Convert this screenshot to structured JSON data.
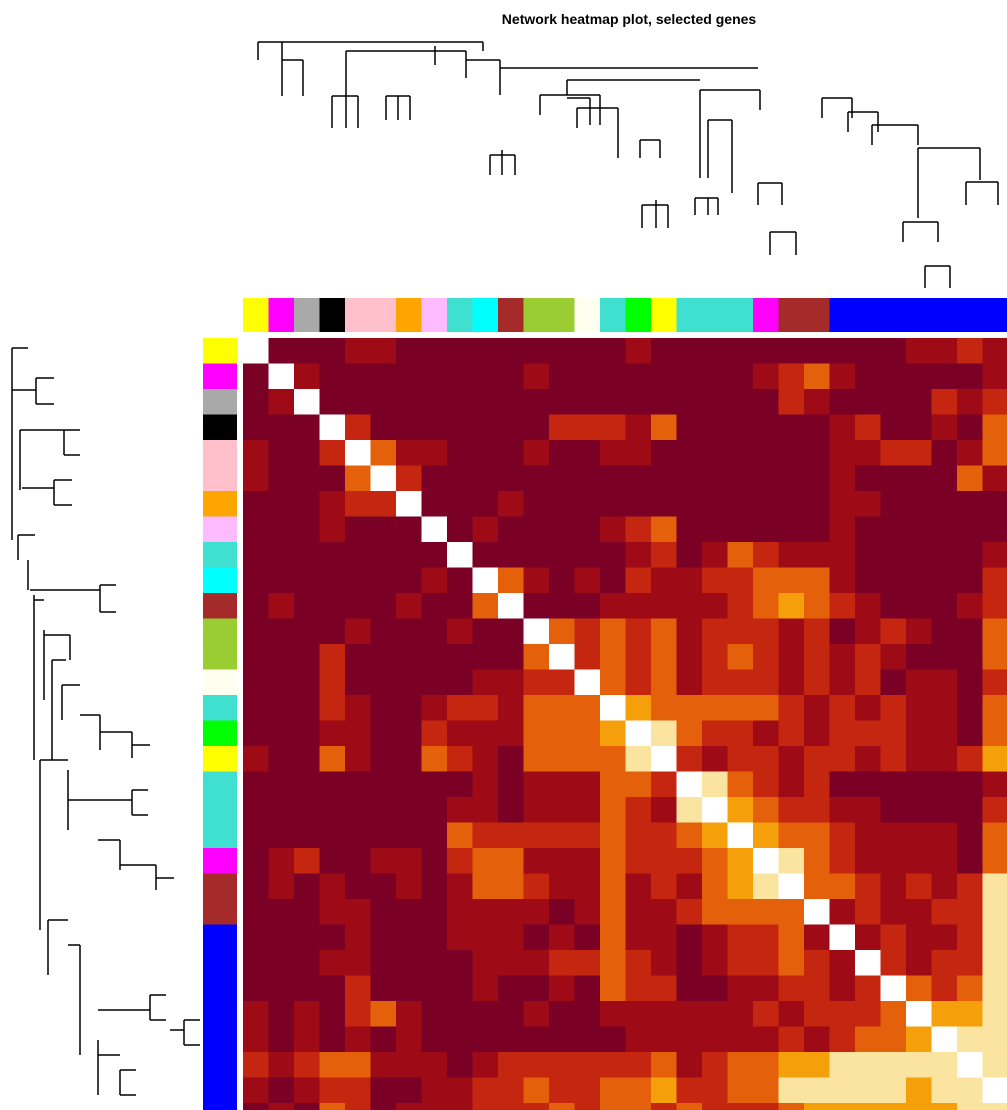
{
  "chart_data": {
    "type": "heatmap",
    "title": "Network heatmap plot, selected genes",
    "xlabel": "",
    "ylabel": "",
    "legend": "none",
    "grid": false,
    "dendrograms": [
      "top",
      "left"
    ],
    "color_scale": [
      "#ffffe0",
      "#fbe3a0",
      "#f59f0b",
      "#e4600a",
      "#c4260f",
      "#9e0a16",
      "#7a0026"
    ],
    "module_colors": [
      "yellow",
      "magenta",
      "darkgrey",
      "black",
      "pink",
      "pink",
      "orange",
      "plum1",
      "turquoise",
      "cyan",
      "brown",
      "yellowgreen",
      "yellowgreen",
      "ivory",
      "turquoise",
      "green",
      "yellow",
      "turquoise",
      "turquoise",
      "turquoise",
      "magenta",
      "brown",
      "brown",
      "blue",
      "blue",
      "blue",
      "blue",
      "blue",
      "blue",
      "blue",
      "blue"
    ],
    "module_hex": {
      "yellow": "#ffff00",
      "magenta": "#ff00ff",
      "darkgrey": "#a9a9a9",
      "black": "#000000",
      "pink": "#ffc0cb",
      "orange": "#ffa500",
      "plum1": "#ffbbff",
      "turquoise": "#40e0d0",
      "cyan": "#00ffff",
      "brown": "#a52a2a",
      "yellowgreen": "#9acd32",
      "ivory": "#fffff0",
      "green": "#00ff00",
      "blue": "#0000ff"
    },
    "values": [
      [
        0,
        6,
        6,
        6,
        5,
        5,
        6,
        6,
        6,
        6,
        6,
        6,
        6,
        6,
        6,
        5,
        6,
        6,
        6,
        6,
        6,
        6,
        6,
        6,
        6,
        6,
        5,
        5,
        4,
        5,
        6
      ],
      [
        6,
        0,
        5,
        6,
        6,
        6,
        6,
        6,
        6,
        6,
        6,
        5,
        6,
        6,
        6,
        6,
        6,
        6,
        6,
        6,
        5,
        4,
        3,
        5,
        6,
        6,
        6,
        6,
        6,
        5,
        5
      ],
      [
        6,
        5,
        0,
        6,
        6,
        6,
        6,
        6,
        6,
        6,
        6,
        6,
        6,
        6,
        6,
        6,
        6,
        6,
        6,
        6,
        6,
        4,
        5,
        6,
        6,
        6,
        6,
        4,
        5,
        4,
        5
      ],
      [
        6,
        6,
        6,
        0,
        4,
        6,
        6,
        6,
        6,
        6,
        6,
        6,
        4,
        4,
        4,
        5,
        3,
        6,
        6,
        6,
        6,
        6,
        6,
        5,
        4,
        6,
        6,
        5,
        6,
        3,
        4
      ],
      [
        5,
        6,
        6,
        4,
        0,
        3,
        5,
        5,
        6,
        6,
        6,
        5,
        6,
        6,
        5,
        5,
        6,
        6,
        6,
        6,
        6,
        6,
        6,
        5,
        5,
        4,
        4,
        6,
        5,
        3,
        4
      ],
      [
        5,
        6,
        6,
        6,
        3,
        0,
        4,
        6,
        6,
        6,
        6,
        6,
        6,
        6,
        6,
        6,
        6,
        6,
        6,
        6,
        6,
        6,
        6,
        5,
        6,
        6,
        6,
        6,
        3,
        5,
        4
      ],
      [
        6,
        6,
        6,
        5,
        4,
        4,
        0,
        6,
        6,
        6,
        5,
        6,
        6,
        6,
        6,
        6,
        6,
        6,
        6,
        6,
        6,
        6,
        6,
        5,
        5,
        6,
        6,
        6,
        6,
        6,
        6
      ],
      [
        6,
        6,
        6,
        5,
        6,
        6,
        6,
        0,
        6,
        5,
        6,
        6,
        6,
        6,
        5,
        4,
        3,
        6,
        6,
        6,
        6,
        6,
        6,
        5,
        6,
        6,
        6,
        6,
        6,
        6,
        5
      ],
      [
        6,
        6,
        6,
        6,
        6,
        6,
        6,
        6,
        0,
        6,
        6,
        6,
        6,
        6,
        6,
        5,
        4,
        6,
        5,
        3,
        4,
        5,
        5,
        5,
        6,
        6,
        6,
        6,
        6,
        5,
        5
      ],
      [
        6,
        6,
        6,
        6,
        6,
        6,
        6,
        5,
        6,
        0,
        3,
        5,
        6,
        5,
        6,
        4,
        5,
        5,
        4,
        4,
        3,
        3,
        3,
        5,
        6,
        6,
        6,
        6,
        6,
        4,
        4
      ],
      [
        6,
        5,
        6,
        6,
        6,
        6,
        5,
        6,
        6,
        3,
        0,
        6,
        6,
        6,
        5,
        5,
        5,
        5,
        5,
        4,
        3,
        2,
        3,
        4,
        5,
        6,
        6,
        6,
        5,
        4,
        4
      ],
      [
        6,
        6,
        6,
        6,
        5,
        6,
        6,
        6,
        5,
        6,
        6,
        0,
        3,
        4,
        3,
        4,
        3,
        5,
        4,
        4,
        4,
        5,
        4,
        6,
        5,
        4,
        5,
        6,
        6,
        3,
        4
      ],
      [
        6,
        6,
        6,
        4,
        6,
        6,
        6,
        6,
        6,
        6,
        6,
        3,
        0,
        4,
        3,
        4,
        3,
        5,
        4,
        3,
        4,
        5,
        4,
        5,
        4,
        5,
        6,
        6,
        6,
        3,
        4
      ],
      [
        6,
        6,
        6,
        4,
        6,
        6,
        6,
        6,
        6,
        5,
        5,
        4,
        4,
        0,
        3,
        4,
        3,
        5,
        4,
        4,
        4,
        5,
        4,
        5,
        4,
        6,
        5,
        5,
        6,
        4,
        4
      ],
      [
        6,
        6,
        6,
        4,
        5,
        6,
        6,
        5,
        4,
        4,
        5,
        3,
        3,
        3,
        0,
        2,
        3,
        3,
        3,
        3,
        3,
        4,
        5,
        4,
        5,
        4,
        5,
        5,
        6,
        3,
        4
      ],
      [
        6,
        6,
        6,
        5,
        5,
        6,
        6,
        4,
        5,
        5,
        5,
        3,
        3,
        3,
        2,
        0,
        1,
        3,
        4,
        4,
        5,
        4,
        5,
        4,
        4,
        4,
        5,
        5,
        6,
        3,
        3
      ],
      [
        5,
        6,
        6,
        3,
        5,
        6,
        6,
        3,
        4,
        5,
        6,
        3,
        3,
        3,
        3,
        1,
        0,
        4,
        5,
        4,
        4,
        5,
        4,
        4,
        5,
        4,
        5,
        5,
        4,
        2,
        3
      ],
      [
        6,
        6,
        6,
        6,
        6,
        6,
        6,
        6,
        6,
        5,
        6,
        5,
        5,
        5,
        3,
        3,
        4,
        0,
        1,
        3,
        4,
        5,
        4,
        6,
        6,
        6,
        6,
        6,
        6,
        5,
        5
      ],
      [
        6,
        6,
        6,
        6,
        6,
        6,
        6,
        6,
        5,
        5,
        6,
        5,
        5,
        5,
        3,
        4,
        5,
        1,
        0,
        2,
        3,
        4,
        4,
        5,
        5,
        6,
        6,
        6,
        6,
        4,
        4
      ],
      [
        6,
        6,
        6,
        6,
        6,
        6,
        6,
        6,
        3,
        4,
        4,
        4,
        4,
        4,
        3,
        4,
        4,
        3,
        2,
        0,
        2,
        3,
        3,
        4,
        5,
        5,
        5,
        5,
        6,
        3,
        4
      ],
      [
        6,
        5,
        4,
        6,
        6,
        5,
        5,
        6,
        4,
        3,
        3,
        5,
        5,
        5,
        3,
        4,
        4,
        4,
        3,
        2,
        0,
        1,
        3,
        4,
        5,
        5,
        5,
        5,
        6,
        3,
        4
      ],
      [
        6,
        5,
        6,
        5,
        6,
        6,
        5,
        6,
        5,
        3,
        3,
        4,
        5,
        5,
        3,
        5,
        4,
        5,
        3,
        2,
        1,
        0,
        3,
        3,
        4,
        5,
        4,
        5,
        4,
        1,
        3
      ],
      [
        6,
        6,
        6,
        5,
        5,
        6,
        6,
        6,
        5,
        5,
        5,
        5,
        6,
        5,
        3,
        5,
        5,
        4,
        3,
        3,
        3,
        3,
        0,
        5,
        4,
        5,
        5,
        4,
        4,
        1,
        2
      ],
      [
        6,
        6,
        6,
        6,
        5,
        6,
        6,
        6,
        5,
        5,
        5,
        6,
        5,
        6,
        3,
        5,
        5,
        6,
        5,
        4,
        4,
        3,
        5,
        0,
        5,
        4,
        5,
        5,
        4,
        1,
        2
      ],
      [
        6,
        6,
        6,
        5,
        5,
        6,
        6,
        6,
        6,
        5,
        5,
        5,
        4,
        4,
        3,
        4,
        5,
        6,
        5,
        4,
        4,
        3,
        4,
        5,
        0,
        4,
        5,
        4,
        4,
        1,
        2
      ],
      [
        6,
        6,
        6,
        6,
        4,
        6,
        6,
        6,
        6,
        5,
        6,
        6,
        5,
        6,
        3,
        4,
        4,
        6,
        6,
        5,
        5,
        4,
        4,
        5,
        4,
        0,
        3,
        4,
        3,
        1,
        2
      ],
      [
        5,
        6,
        5,
        6,
        4,
        3,
        5,
        6,
        6,
        6,
        6,
        5,
        6,
        6,
        5,
        5,
        5,
        5,
        5,
        5,
        4,
        5,
        4,
        4,
        4,
        3,
        0,
        2,
        2,
        1,
        2
      ],
      [
        5,
        6,
        5,
        6,
        5,
        6,
        5,
        6,
        6,
        6,
        6,
        6,
        6,
        6,
        6,
        5,
        5,
        5,
        5,
        5,
        5,
        4,
        5,
        4,
        3,
        3,
        2,
        0,
        1,
        1,
        2
      ],
      [
        4,
        5,
        4,
        3,
        3,
        5,
        5,
        5,
        6,
        5,
        4,
        4,
        4,
        4,
        4,
        4,
        3,
        5,
        4,
        3,
        3,
        2,
        2,
        1,
        1,
        1,
        1,
        1,
        0,
        1,
        1
      ],
      [
        5,
        6,
        5,
        4,
        4,
        6,
        6,
        5,
        5,
        4,
        4,
        3,
        4,
        4,
        3,
        3,
        2,
        4,
        4,
        3,
        3,
        1,
        1,
        1,
        1,
        1,
        2,
        1,
        1,
        0,
        1
      ],
      [
        6,
        5,
        6,
        3,
        4,
        6,
        5,
        5,
        5,
        4,
        4,
        4,
        3,
        4,
        3,
        3,
        4,
        3,
        4,
        4,
        4,
        3,
        2,
        2,
        2,
        2,
        2,
        2,
        1,
        1,
        0
      ]
    ]
  }
}
